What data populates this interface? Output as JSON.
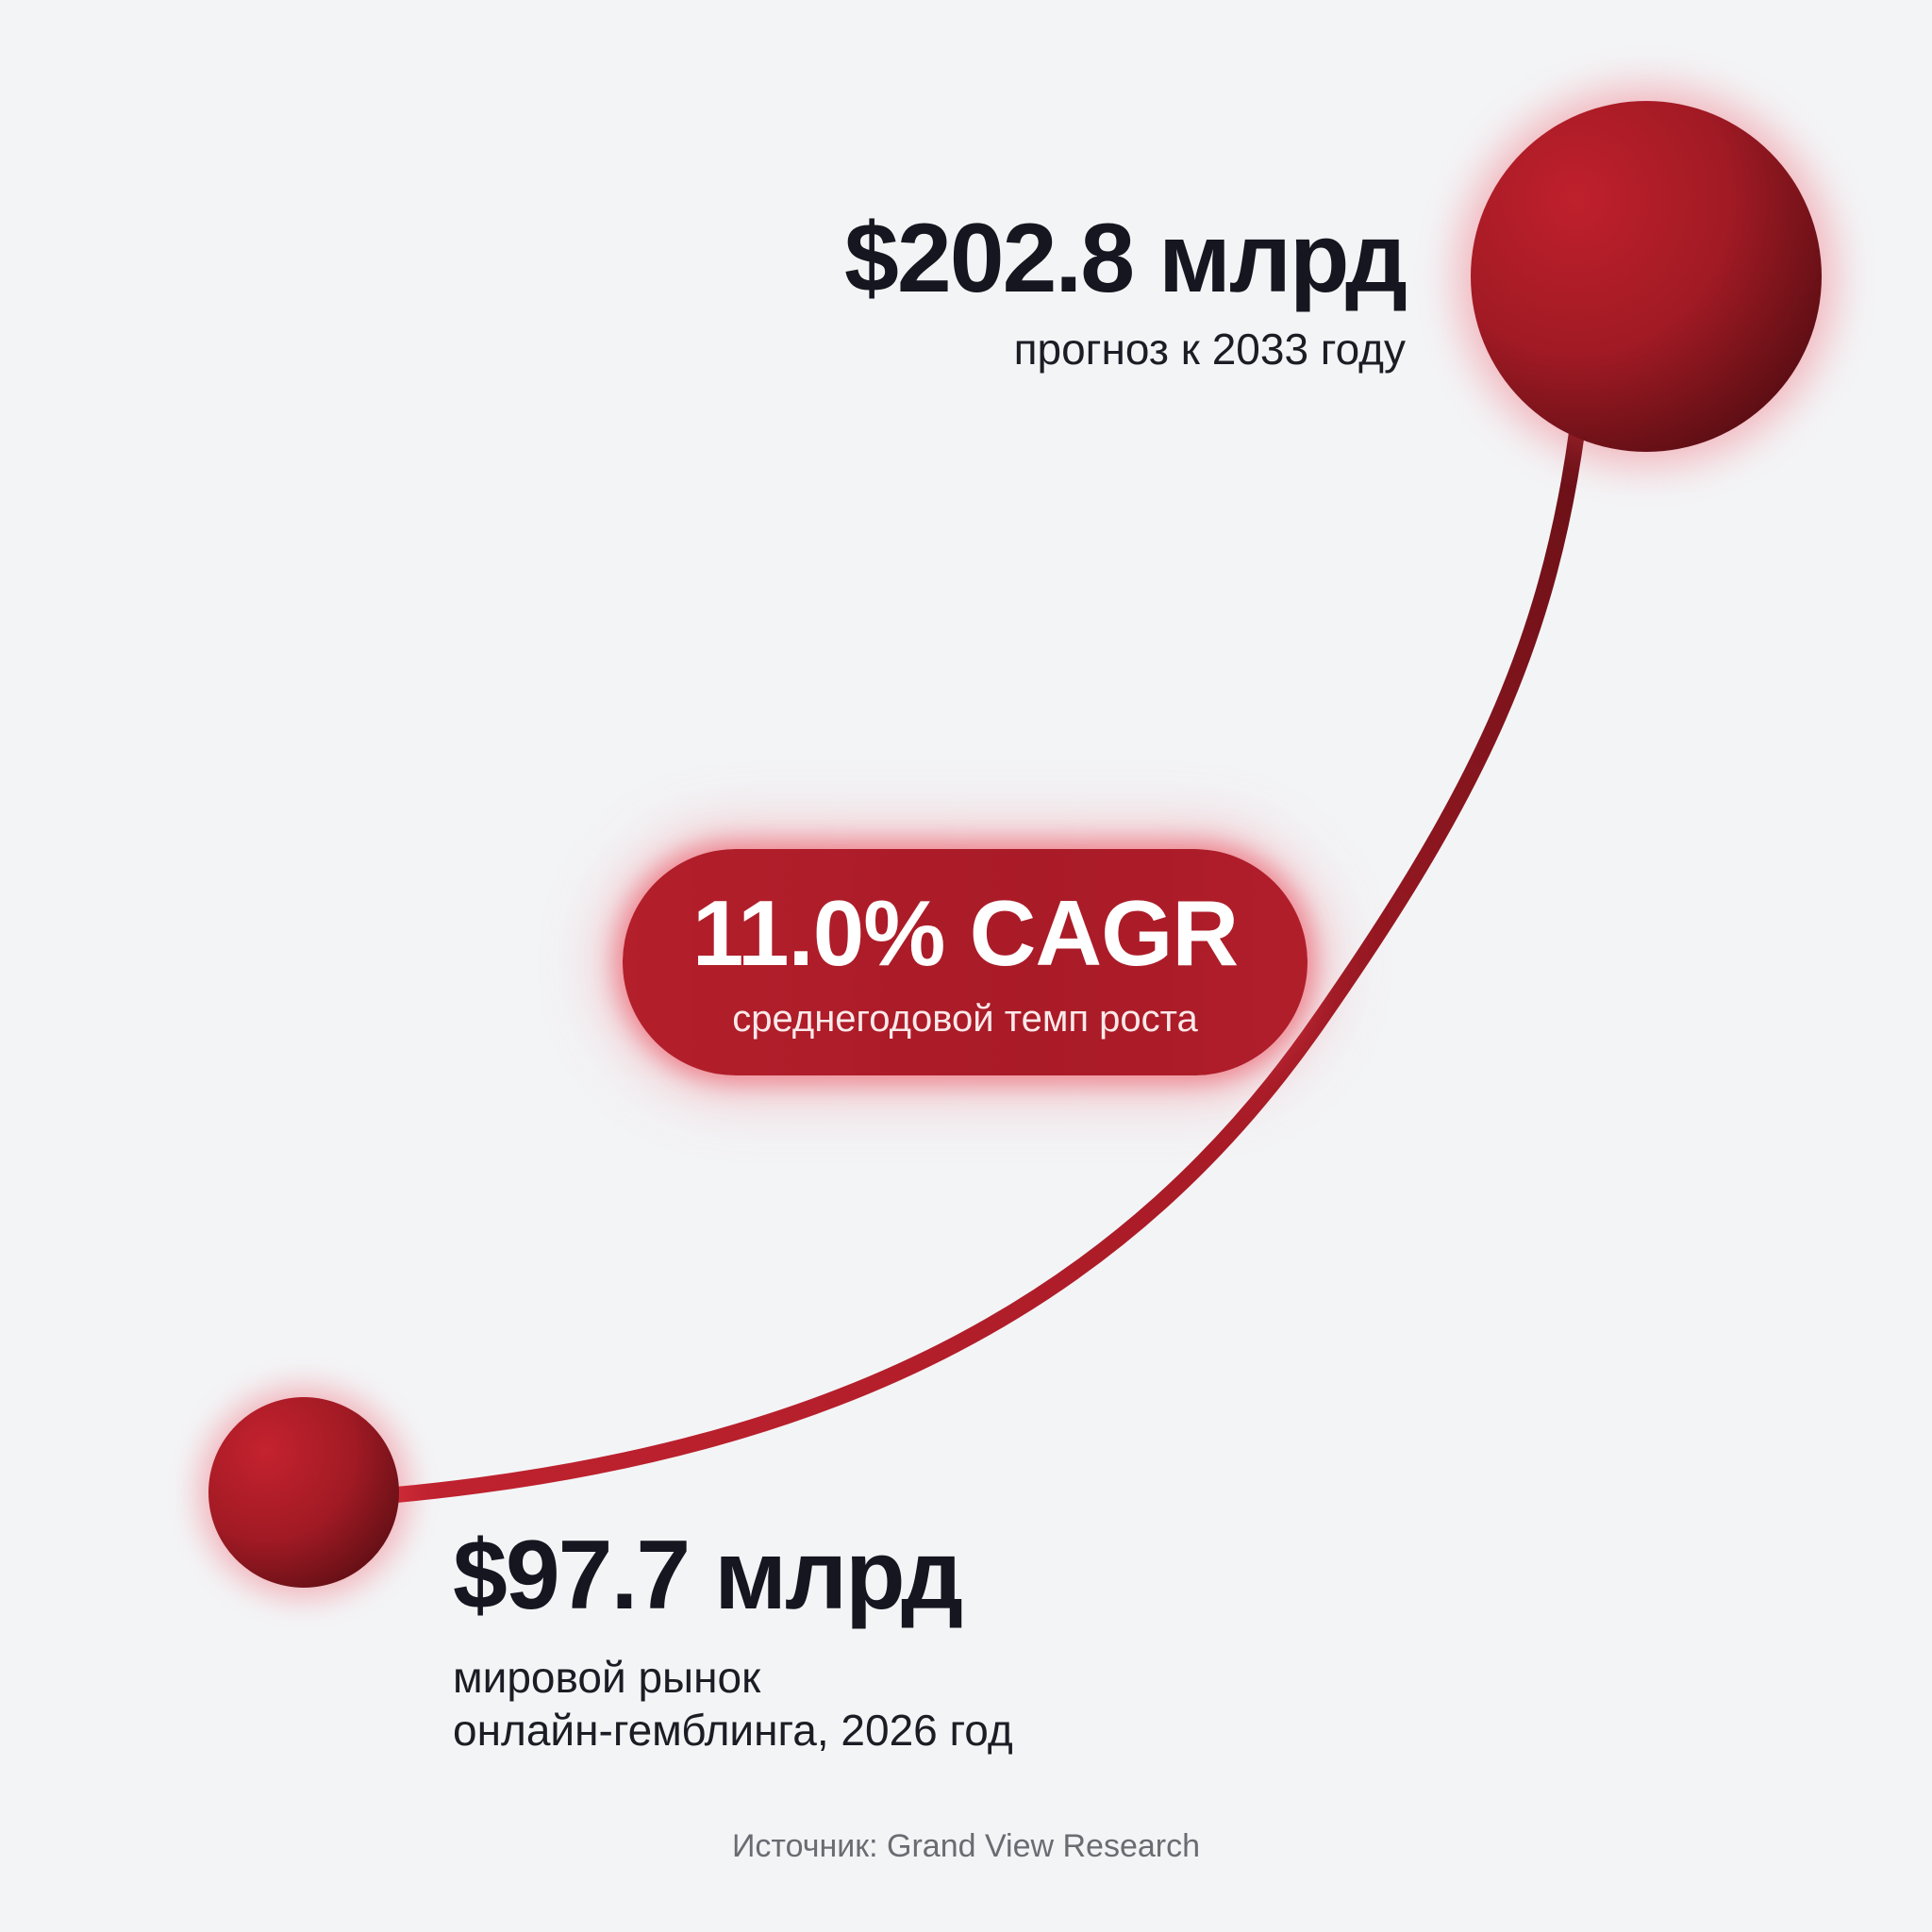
{
  "points": {
    "end": {
      "value": "$202.8 млрд",
      "caption": "прогноз к 2033 году"
    },
    "start": {
      "value": "$97.7 млрд",
      "caption_line1": "мировой рынок",
      "caption_line2": "онлайн-гемблинга, 2026 год"
    }
  },
  "growth": {
    "value": "11.0% CAGR",
    "caption": "среднегодовой темп роста"
  },
  "source": "Источник: Grand View Research",
  "colors": {
    "background": "#f3f4f6",
    "accent": "#b01e2a",
    "accent_dark": "#5e0f15",
    "text": "#15161f",
    "muted": "#6a6c72"
  }
}
